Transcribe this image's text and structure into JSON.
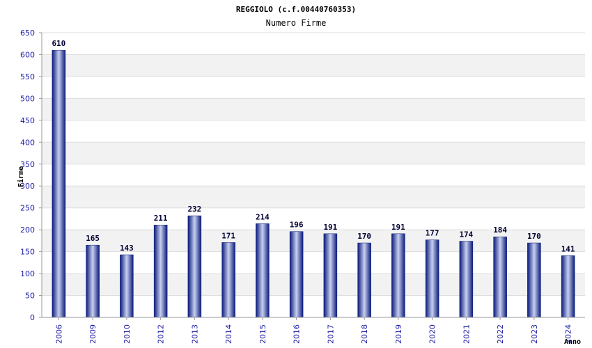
{
  "chart_data": {
    "type": "bar",
    "title": "REGGIOLO (c.f.00440760353)",
    "subtitle": "Numero Firme",
    "xlabel": "Anno",
    "ylabel": "Firme",
    "categories": [
      "2006",
      "2009",
      "2010",
      "2012",
      "2013",
      "2014",
      "2015",
      "2016",
      "2017",
      "2018",
      "2019",
      "2020",
      "2021",
      "2022",
      "2023",
      "2024"
    ],
    "values": [
      610,
      165,
      143,
      211,
      232,
      171,
      214,
      196,
      191,
      170,
      191,
      177,
      174,
      184,
      170,
      141
    ],
    "ylim": [
      0,
      650
    ],
    "yticks": [
      0,
      50,
      100,
      150,
      200,
      250,
      300,
      350,
      400,
      450,
      500,
      550,
      600,
      650
    ],
    "grid": true,
    "colors": {
      "bar_dark": "#0a1a7a",
      "bar_light": "#c8d0f0",
      "band": "#f2f2f2",
      "tick_text": "#1a1aa6"
    }
  }
}
